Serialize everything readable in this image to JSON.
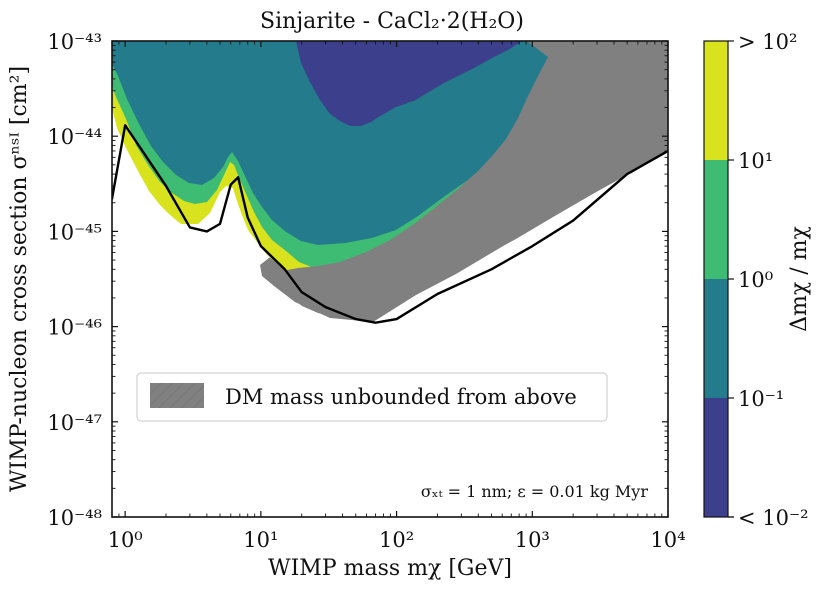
{
  "chart_data": {
    "type": "contour",
    "title": "Sinjarite - CaCl₂·2(H₂O)",
    "xlabel": "WIMP mass mχ [GeV]",
    "ylabel": "WIMP-nucleon cross section σⁿˢᴵ [cm²]",
    "x_scale": "log",
    "y_scale": "log",
    "x_range": [
      0.8,
      10000
    ],
    "y_range": [
      1e-48,
      1e-43
    ],
    "x_ticks": [
      {
        "value": 1,
        "label": "10⁰"
      },
      {
        "value": 10,
        "label": "10¹"
      },
      {
        "value": 100,
        "label": "10²"
      },
      {
        "value": 1000,
        "label": "10³"
      },
      {
        "value": 10000,
        "label": "10⁴"
      }
    ],
    "y_ticks": [
      {
        "value": 1e-43,
        "label": "10⁻⁴³"
      },
      {
        "value": 1e-44,
        "label": "10⁻⁴⁴"
      },
      {
        "value": 1e-45,
        "label": "10⁻⁴⁵"
      },
      {
        "value": 1e-46,
        "label": "10⁻⁴⁶"
      },
      {
        "value": 1e-47,
        "label": "10⁻⁴⁷"
      },
      {
        "value": 1e-48,
        "label": "10⁻⁴⁸"
      }
    ],
    "colorbar": {
      "label": "Δmχ / mχ",
      "levels": [
        {
          "label": "< 10⁻²",
          "color": "#3b3f8c"
        },
        {
          "label": "10⁻¹",
          "color": "#237b8b"
        },
        {
          "label": "10⁰",
          "color": "#3fbc73"
        },
        {
          "label": "10¹",
          "color": "#d8e21d"
        },
        {
          "label": "> 10²",
          "color": "#d8e21d"
        }
      ],
      "tick_labels": [
        "> 10²",
        "10¹",
        "10⁰",
        "10⁻¹",
        "< 10⁻²"
      ]
    },
    "legend": {
      "label": "DM mass unbounded from above",
      "color": "#808080",
      "placement": "center-left"
    },
    "annotation": "σₓₜ = 1 nm; ε = 0.01 kg Myr",
    "boundary": {
      "description": "Black curve enclosing the sensitivity region",
      "points": [
        {
          "x": 0.8,
          "y": 2.2e-45
        },
        {
          "x": 1.0,
          "y": 1.3e-44
        },
        {
          "x": 2.0,
          "y": 3e-45
        },
        {
          "x": 3.0,
          "y": 1.1e-45
        },
        {
          "x": 4.0,
          "y": 1e-45
        },
        {
          "x": 5.0,
          "y": 1.2e-45
        },
        {
          "x": 6.0,
          "y": 3.1e-45
        },
        {
          "x": 6.8,
          "y": 3.7e-45
        },
        {
          "x": 8.0,
          "y": 1.4e-45
        },
        {
          "x": 10.0,
          "y": 7e-46
        },
        {
          "x": 15.0,
          "y": 4e-46
        },
        {
          "x": 20.0,
          "y": 2.3e-46
        },
        {
          "x": 30.0,
          "y": 1.6e-46
        },
        {
          "x": 50.0,
          "y": 1.2e-46
        },
        {
          "x": 70.0,
          "y": 1.1e-46
        },
        {
          "x": 100.0,
          "y": 1.2e-46
        },
        {
          "x": 200.0,
          "y": 2.2e-46
        },
        {
          "x": 500.0,
          "y": 4e-46
        },
        {
          "x": 1000.0,
          "y": 7e-46
        },
        {
          "x": 2000.0,
          "y": 1.3e-45
        },
        {
          "x": 5000.0,
          "y": 4e-45
        },
        {
          "x": 10000.0,
          "y": 7e-45
        }
      ]
    }
  }
}
